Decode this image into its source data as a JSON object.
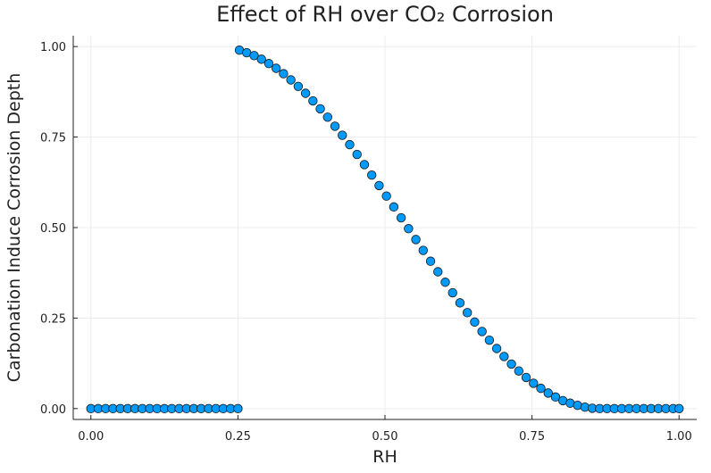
{
  "chart_data": {
    "type": "scatter",
    "title": "Effect of RH over CO₂ Corrosion",
    "xlabel": "RH",
    "ylabel": "Carbonation Induce Corrosion Depth",
    "xlim": [
      -0.03,
      1.03
    ],
    "ylim": [
      -0.03,
      1.03
    ],
    "grid": true,
    "legend": "none",
    "marker_color": "#009AFA",
    "xticks": [
      {
        "value": 0.0,
        "label": "0.00"
      },
      {
        "value": 0.25,
        "label": "0.25"
      },
      {
        "value": 0.5,
        "label": "0.50"
      },
      {
        "value": 0.75,
        "label": "0.75"
      },
      {
        "value": 1.0,
        "label": "1.00"
      }
    ],
    "yticks": [
      {
        "value": 0.0,
        "label": "0.00"
      },
      {
        "value": 0.25,
        "label": "0.25"
      },
      {
        "value": 0.5,
        "label": "0.50"
      },
      {
        "value": 0.75,
        "label": "0.75"
      },
      {
        "value": 1.0,
        "label": "1.00"
      }
    ],
    "x": [
      0.0,
      0.0125,
      0.025,
      0.0375,
      0.05,
      0.0625,
      0.075,
      0.0875,
      0.1,
      0.1125,
      0.125,
      0.1375,
      0.15,
      0.1625,
      0.175,
      0.1875,
      0.2,
      0.2125,
      0.225,
      0.2375,
      0.25,
      0.2525,
      0.265,
      0.2775,
      0.29,
      0.3025,
      0.315,
      0.3275,
      0.34,
      0.3525,
      0.365,
      0.3775,
      0.39,
      0.4025,
      0.415,
      0.4275,
      0.44,
      0.4525,
      0.465,
      0.4775,
      0.49,
      0.5025,
      0.515,
      0.5275,
      0.54,
      0.5525,
      0.565,
      0.5775,
      0.59,
      0.6025,
      0.615,
      0.6275,
      0.64,
      0.6525,
      0.665,
      0.6775,
      0.69,
      0.7025,
      0.715,
      0.7275,
      0.74,
      0.7525,
      0.765,
      0.7775,
      0.79,
      0.8025,
      0.815,
      0.8275,
      0.84,
      0.8525,
      0.865,
      0.8775,
      0.89,
      0.9025,
      0.915,
      0.9275,
      0.94,
      0.9525,
      0.965,
      0.9775,
      0.99,
      1.0
    ],
    "y": [
      0.0,
      0.0,
      0.0,
      0.0,
      0.0,
      0.0,
      0.0,
      0.0,
      0.0,
      0.0,
      0.0,
      0.0,
      0.0,
      0.0,
      0.0,
      0.0,
      0.0,
      0.0,
      0.0,
      0.0,
      0.0,
      0.99,
      0.983,
      0.975,
      0.965,
      0.953,
      0.94,
      0.925,
      0.908,
      0.89,
      0.871,
      0.85,
      0.828,
      0.805,
      0.78,
      0.755,
      0.729,
      0.702,
      0.674,
      0.645,
      0.616,
      0.587,
      0.557,
      0.527,
      0.497,
      0.467,
      0.437,
      0.407,
      0.378,
      0.349,
      0.32,
      0.292,
      0.265,
      0.239,
      0.213,
      0.189,
      0.166,
      0.144,
      0.123,
      0.104,
      0.086,
      0.07,
      0.056,
      0.043,
      0.032,
      0.022,
      0.015,
      0.009,
      0.004,
      0.001,
      0.0,
      0.0,
      0.0,
      0.0,
      0.0,
      0.0,
      0.0,
      0.0,
      0.0,
      0.0,
      0.0,
      0.0
    ]
  }
}
